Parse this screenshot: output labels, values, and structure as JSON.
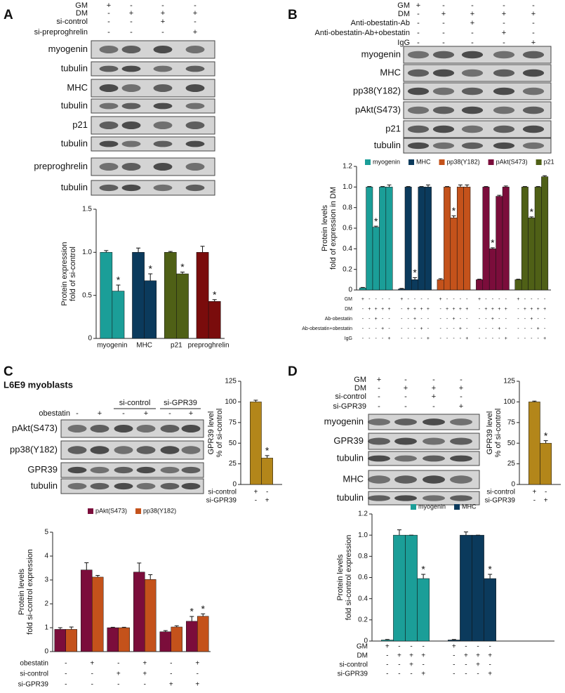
{
  "panels": [
    {
      "letter": "A",
      "conditions": [
        {
          "name": "GM",
          "signs": [
            "+",
            "-",
            "-",
            "-"
          ]
        },
        {
          "name": "DM",
          "signs": [
            "-",
            "+",
            "+",
            "+"
          ]
        },
        {
          "name": "si-control",
          "signs": [
            "-",
            "-",
            "+",
            "-"
          ]
        },
        {
          "name": "si-preproghrelin",
          "signs": [
            "-",
            "-",
            "-",
            "+"
          ]
        }
      ],
      "bands": [
        "myogenin",
        "tubulin",
        "MHC",
        "tubulin",
        "p21",
        "tubulin",
        "preproghrelin",
        "tubulin"
      ]
    },
    {
      "letter": "B",
      "conditions": [
        {
          "name": "GM",
          "signs": [
            "+",
            "-",
            "-",
            "-",
            "-"
          ]
        },
        {
          "name": "DM",
          "signs": [
            "-",
            "+",
            "+",
            "+",
            "+"
          ]
        },
        {
          "name": "Anti-obestatin-Ab",
          "signs": [
            "-",
            "-",
            "+",
            "-",
            "-"
          ]
        },
        {
          "name": "Anti-obestatin-Ab+obestatin",
          "signs": [
            "-",
            "-",
            "-",
            "+",
            "-"
          ]
        },
        {
          "name": "IgG",
          "signs": [
            "-",
            "-",
            "-",
            "-",
            "+"
          ]
        }
      ],
      "bands": [
        "myogenin",
        "MHC",
        "pp38(Y182)",
        "pAkt(S473)",
        "p21",
        "tubulin"
      ]
    },
    {
      "letter": "C",
      "subtitle": "L6E9 myoblasts",
      "groups": [
        "si-control",
        "si-GPR39"
      ],
      "conditions": [
        {
          "name": "obestatin",
          "signs": [
            "-",
            "+",
            "-",
            "+",
            "-",
            "+"
          ]
        }
      ],
      "bands": [
        "pAkt(S473)",
        "pp38(Y182)",
        "GPR39",
        "tubulin"
      ]
    },
    {
      "letter": "D",
      "conditions": [
        {
          "name": "GM",
          "signs": [
            "+",
            "-",
            "-",
            "-"
          ]
        },
        {
          "name": "DM",
          "signs": [
            "-",
            "+",
            "+",
            "+"
          ]
        },
        {
          "name": "si-control",
          "signs": [
            "-",
            "-",
            "+",
            "-"
          ]
        },
        {
          "name": "si-GPR39",
          "signs": [
            "-",
            "-",
            "-",
            "+"
          ]
        }
      ],
      "bands": [
        "myogenin",
        "GPR39",
        "tubulin",
        "MHC",
        "tubulin"
      ]
    }
  ],
  "chart_data": [
    {
      "type": "bar",
      "layout": "by-series",
      "legend": false,
      "ylabel": [
        "Protein expression",
        "fold of si-control"
      ],
      "ylim": [
        0,
        1.5
      ],
      "yticks": [
        0,
        0.5,
        {
          "value": 1,
          "label": "1.0"
        },
        1.5
      ],
      "series": [
        {
          "name": "myogenin",
          "color": "#1b9e98",
          "values": [
            1,
            0.55
          ],
          "errors": [
            0.02,
            0.07
          ],
          "marks": [
            null,
            "*"
          ]
        },
        {
          "name": "MHC",
          "color": "#0b3a5c",
          "values": [
            1,
            0.67
          ],
          "errors": [
            0.05,
            0.08
          ],
          "marks": [
            null,
            "*"
          ]
        },
        {
          "name": "p21",
          "color": "#4f6016",
          "values": [
            1,
            0.75
          ],
          "errors": [
            0.01,
            0.02
          ],
          "marks": [
            null,
            "*"
          ]
        },
        {
          "name": "preproghrelin",
          "color": "#7a0c0c",
          "values": [
            1,
            0.43
          ],
          "errors": [
            0.07,
            0.02
          ],
          "marks": [
            null,
            "*"
          ]
        }
      ]
    },
    {
      "type": "bar",
      "layout": "by-series",
      "legend": "top",
      "ylabel": [
        "Protein levels",
        "fold of expression in DM"
      ],
      "ylim": [
        0,
        1.2
      ],
      "yticks": [
        0,
        0.2,
        0.4,
        0.6,
        0.8,
        {
          "value": 1,
          "label": "1.0"
        },
        1.2
      ],
      "series": [
        {
          "name": "myogenin",
          "color": "#1b9e98",
          "values": [
            0.02,
            1,
            0.61,
            1,
            1
          ],
          "errors": [
            0.005,
            0.005,
            0.01,
            0.005,
            0.02
          ],
          "marks": [
            null,
            null,
            "*",
            null,
            null
          ]
        },
        {
          "name": "MHC",
          "color": "#0b3a5c",
          "values": [
            0.01,
            1,
            0.1,
            1,
            1
          ],
          "errors": [
            0.005,
            0.005,
            0.02,
            0.005,
            0.02
          ],
          "marks": [
            null,
            null,
            "*",
            null,
            null
          ]
        },
        {
          "name": "pp38(Y182)",
          "color": "#c4521b",
          "values": [
            0.1,
            1,
            0.7,
            1,
            1
          ],
          "errors": [
            0.01,
            0.005,
            0.02,
            0.02,
            0.02
          ],
          "marks": [
            null,
            null,
            "*",
            null,
            null
          ]
        },
        {
          "name": "pAkt(S473)",
          "color": "#7b0d3b",
          "values": [
            0.1,
            1,
            0.4,
            0.91,
            1
          ],
          "errors": [
            0.005,
            0.005,
            0.01,
            0.01,
            0.01
          ],
          "marks": [
            null,
            null,
            "*",
            null,
            null
          ]
        },
        {
          "name": "p21",
          "color": "#4f6016",
          "values": [
            0.1,
            1,
            0.7,
            1,
            1.1
          ],
          "errors": [
            0.005,
            0.005,
            0.01,
            0.005,
            0.01
          ],
          "marks": [
            null,
            null,
            "*",
            null,
            null
          ]
        }
      ],
      "conditions": [
        {
          "name": "GM",
          "signs": [
            "+",
            "-",
            "-",
            "-",
            "-"
          ]
        },
        {
          "name": "DM",
          "signs": [
            "-",
            "+",
            "+",
            "+",
            "+"
          ]
        },
        {
          "name": "Ab-obestatin",
          "signs": [
            "-",
            "-",
            "+",
            "-",
            "-"
          ]
        },
        {
          "name": "Ab-obestatin+obestatin",
          "signs": [
            "-",
            "-",
            "-",
            "+",
            "-"
          ]
        },
        {
          "name": "IgG",
          "signs": [
            "-",
            "-",
            "-",
            "-",
            "+"
          ]
        }
      ]
    },
    {
      "type": "bar",
      "layout": "by-series",
      "legend": false,
      "ylabel": [
        "GPR39 level",
        "% of si-control"
      ],
      "ylim": [
        0,
        125
      ],
      "yticks": [
        0,
        25,
        50,
        75,
        100,
        125
      ],
      "series": [
        {
          "color": "#b3861a",
          "values": [
            100,
            32
          ],
          "errors": [
            2,
            3
          ],
          "marks": [
            null,
            "*"
          ]
        }
      ],
      "conditions": [
        {
          "name": "si-control",
          "signs": [
            "+",
            "-"
          ]
        },
        {
          "name": "si-GPR39",
          "signs": [
            "-",
            "+"
          ]
        }
      ]
    },
    {
      "type": "bar",
      "layout": "by-category",
      "legend": "top",
      "ylabel": [
        "Protein levels",
        "fold si-control expression"
      ],
      "ylim": [
        0,
        5
      ],
      "yticks": [
        0,
        1,
        2,
        3,
        4,
        5
      ],
      "series": [
        {
          "name": "pAkt(S473)",
          "color": "#7b0d3b",
          "values": [
            0.93,
            3.42,
            1.0,
            3.33,
            0.83,
            1.27
          ],
          "errors": [
            0.07,
            0.3,
            0.02,
            0.38,
            0.05,
            0.2
          ],
          "marks": [
            null,
            null,
            null,
            null,
            null,
            "*"
          ]
        },
        {
          "name": "pp38(Y182)",
          "color": "#c4521b",
          "values": [
            0.93,
            3.12,
            1.0,
            3.02,
            1.03,
            1.48
          ],
          "errors": [
            0.1,
            0.07,
            0.02,
            0.2,
            0.05,
            0.1
          ],
          "marks": [
            null,
            null,
            null,
            null,
            null,
            "*"
          ]
        }
      ],
      "conditions": [
        {
          "name": "obestatin",
          "signs": [
            "-",
            "+",
            "-",
            "+",
            "-",
            "+"
          ]
        },
        {
          "name": "si-control",
          "signs": [
            "-",
            "-",
            "+",
            "+",
            "-",
            "-"
          ]
        },
        {
          "name": "si-GPR39",
          "signs": [
            "-",
            "-",
            "-",
            "-",
            "+",
            "+"
          ]
        }
      ]
    },
    {
      "type": "bar",
      "layout": "by-series",
      "legend": false,
      "ylabel": [
        "GPR39 level",
        "% of si-control"
      ],
      "ylim": [
        0,
        125
      ],
      "yticks": [
        0,
        25,
        50,
        75,
        100,
        125
      ],
      "series": [
        {
          "color": "#b3861a",
          "values": [
            100,
            50
          ],
          "errors": [
            1,
            3
          ],
          "marks": [
            null,
            "*"
          ]
        }
      ],
      "conditions": [
        {
          "name": "si-control",
          "signs": [
            "+",
            "-"
          ]
        },
        {
          "name": "si-GPR39",
          "signs": [
            "-",
            "+"
          ]
        }
      ]
    },
    {
      "type": "bar",
      "layout": "by-series",
      "legend": "top",
      "ylabel": [
        "Protein levels",
        "fold si-control expression"
      ],
      "ylim": [
        0,
        1.2
      ],
      "yticks": [
        0,
        0.2,
        0.4,
        0.6,
        0.8,
        {
          "value": 1,
          "label": "1.0"
        },
        1.2
      ],
      "series": [
        {
          "name": "myogenin",
          "color": "#1b9e98",
          "values": [
            0.01,
            1,
            1,
            0.59
          ],
          "errors": [
            0.005,
            0.05,
            0,
            0.04
          ],
          "marks": [
            null,
            null,
            null,
            "*"
          ]
        },
        {
          "name": "MHC",
          "color": "#0b3a5c",
          "values": [
            0.01,
            1,
            1,
            0.59
          ],
          "errors": [
            0.005,
            0.03,
            0,
            0.04
          ],
          "marks": [
            null,
            null,
            null,
            "*"
          ]
        }
      ],
      "conditions": [
        {
          "name": "GM",
          "signs": [
            "+",
            "-",
            "-",
            "-"
          ]
        },
        {
          "name": "DM",
          "signs": [
            "-",
            "+",
            "+",
            "+"
          ]
        },
        {
          "name": "si-control",
          "signs": [
            "-",
            "-",
            "+",
            "-"
          ]
        },
        {
          "name": "si-GPR39",
          "signs": [
            "-",
            "-",
            "-",
            "+"
          ]
        }
      ]
    }
  ]
}
